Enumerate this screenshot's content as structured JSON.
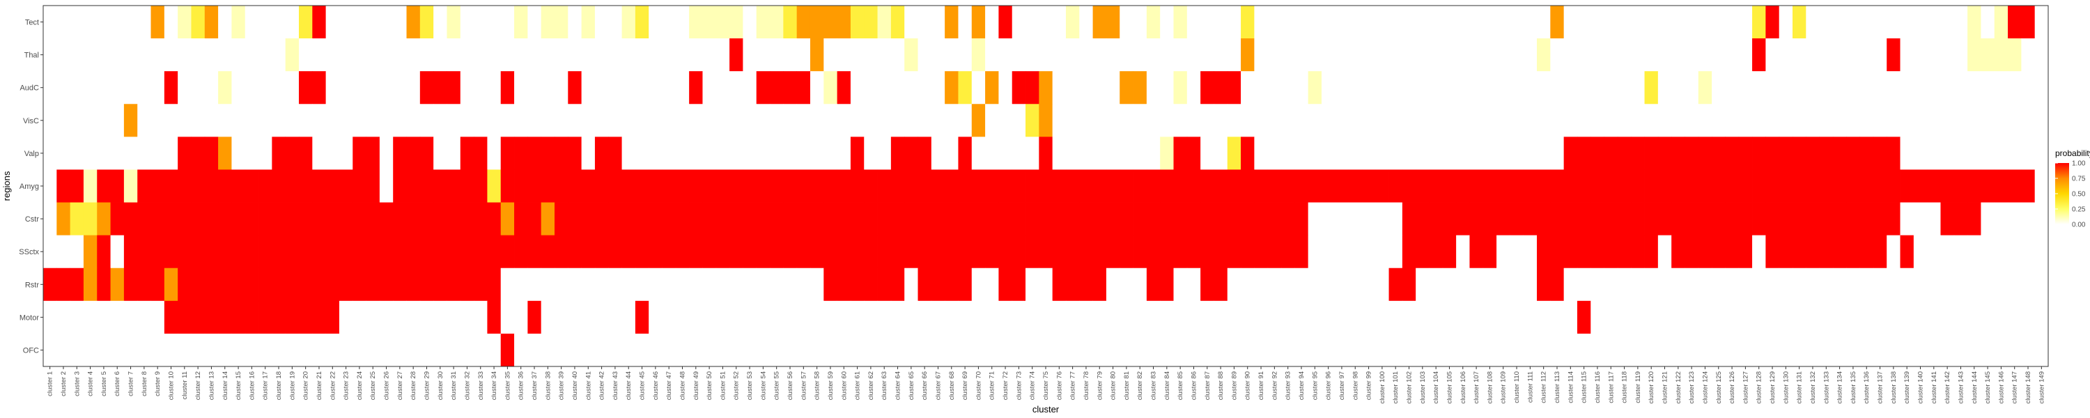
{
  "chart_data": {
    "type": "heatmap",
    "title": "",
    "xlabel": "cluster",
    "ylabel": "regions",
    "grid": false,
    "legend_position": "right",
    "rows": [
      "Tect",
      "Thal",
      "AudC",
      "VisC",
      "Valp",
      "Amyg",
      "Cstr",
      "SSctx",
      "Rstr",
      "Motor",
      "OFC"
    ],
    "col_prefix": "cluster ",
    "n_clusters": 149,
    "value_range": [
      0,
      1
    ],
    "colorscale": [
      [
        0.0,
        "#ffffff"
      ],
      [
        0.25,
        "#ffff66"
      ],
      [
        0.5,
        "#ffd700"
      ],
      [
        0.75,
        "#ff8c00"
      ],
      [
        1.0,
        "#ff0000"
      ]
    ],
    "legend": {
      "title": "probability",
      "ticks": [
        {
          "value": 1.0,
          "label": "1.00"
        },
        {
          "value": 0.75,
          "label": "0.75"
        },
        {
          "value": 0.5,
          "label": "0.50"
        },
        {
          "value": 0.25,
          "label": "0.25"
        },
        {
          "value": 0.0,
          "label": "0.00"
        }
      ]
    },
    "values": {
      "Tect": "0000000030123010000240000003201000010110100120001111011233332212000303040000103300101000020000000000000000000000300000000000000240200000000000010144",
      "Thal": "0000000000000000001000000000000000000000000000000004000003000000100001000000000000000000030000000000000000000001000000000000000400000000040000011110",
      "AudC": "0000000004000100000440000000444000400004000000004000044440140000000320304430000033001044400000100000000000000000000000020001000000000000000000000000",
      "VisC": "0000003000000000000000000000000000000000000000000000000000000000000003000230000000000000000000000000000000000000000000000000000000000000000000000000",
      "Valp": "0000000000444300044400044044400440444444044000000000000000004004440040000040000000014400240000000000000000000000044444444444444444444444440000000000",
      "Amyg": "0441441444444444444444444044444442444444444444444444444444444444444444444444444444444444444444444444444444444444444444444444444444444444444444444444",
      "Cstr": "0322344444444444444444444444444444344344444444444444444444444444444444444444444444444444444444000000044444444444444444444444444444444444440004440000",
      "SSctx": "0003404444444444444444444444444444444444444444444444444444444444444444444444444444444444444444000000044440440004444444440444444044444444404000000000",
      "Rstr": "4443434443444444444444444444444444000000000000000000000000444444044440044004444000440044000000000000440000000004400000000000000000000000000000000000",
      "Motor": "0000000004444444444444000000000004004000000040000000000000000000000000000000000000000000000000000000000000000000004000000000000000000000000000000000",
      "OFC": "0000000000000000000000000000000000400000000000000000000000000000000000000000000000000000000000000000000000000000000000000000000000000000000000000000"
    }
  }
}
